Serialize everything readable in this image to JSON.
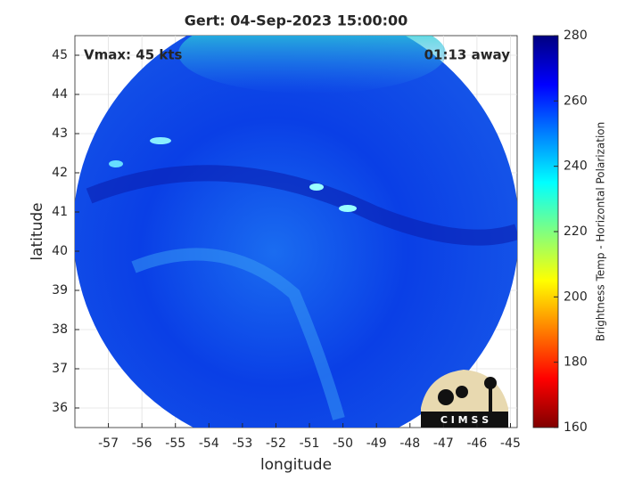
{
  "chart_data": {
    "type": "image",
    "title": "Gert: 04-Sep-2023 15:00:00",
    "annotations": [
      "Vmax: 45 kts",
      "01:13 away"
    ],
    "xlabel": "longitude",
    "ylabel": "latitude",
    "xlim": [
      -58,
      -44.8
    ],
    "ylim": [
      35.5,
      45.5
    ],
    "xticks": [
      -57,
      -56,
      -55,
      -54,
      -53,
      -52,
      -51,
      -50,
      -49,
      -48,
      -47,
      -46,
      -45
    ],
    "yticks": [
      36,
      37,
      38,
      39,
      40,
      41,
      42,
      43,
      44,
      45
    ],
    "grid": true,
    "colorbar": {
      "label": "Brightness Temp - Horizontal Polarization",
      "lim": [
        160,
        280
      ],
      "ticks": [
        160,
        180,
        200,
        220,
        240,
        260,
        280
      ],
      "colors": [
        "#800000",
        "#ff0000",
        "#ff8000",
        "#ffff00",
        "#80ff80",
        "#00ffff",
        "#0080ff",
        "#0000ff",
        "#000080"
      ]
    },
    "logo_text": "C I M S S"
  }
}
